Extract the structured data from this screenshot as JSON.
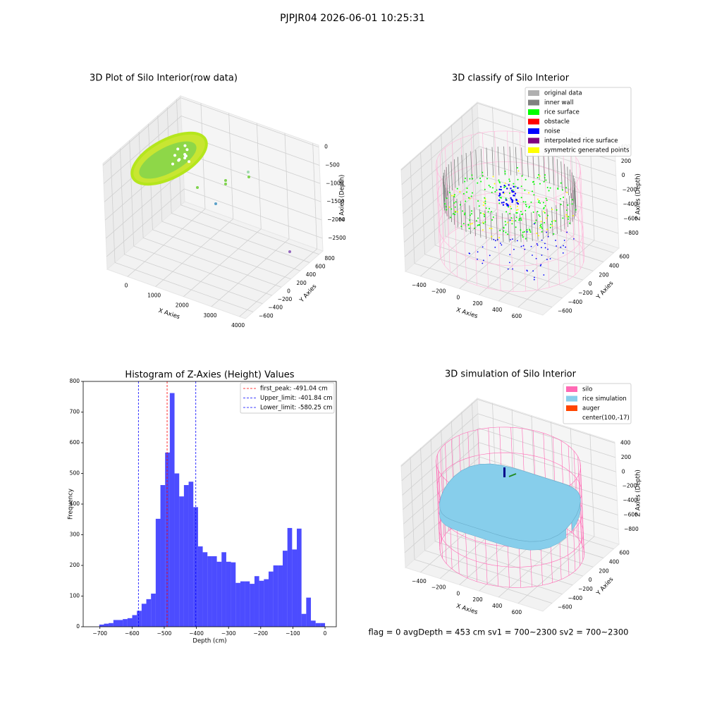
{
  "suptitle": "PJPJR04 2026-06-01 10:25:31",
  "footer": "flag = 0     avgDepth = 453 cm  sv1 = 700~2300  sv2 = 700~2300",
  "chart_data": [
    {
      "type": "scatter3d",
      "title": "3D Plot of Silo Interior(row data)",
      "xlabel": "X Axies",
      "ylabel": "Y Axies",
      "zlabel": "Z Axies (Depth)",
      "xlim": [
        -730,
        4210
      ],
      "ylim": [
        -765,
        882
      ],
      "zlim": [
        -2850,
        50
      ],
      "xticks": [
        0,
        1000,
        2000,
        3000,
        4000
      ],
      "yticks": [
        {
          "value": -600,
          "label": "−600"
        },
        {
          "value": -400,
          "label": "−400"
        },
        {
          "value": -200,
          "label": "−200"
        },
        0,
        200,
        400,
        600,
        800
      ],
      "zticks": [
        0,
        {
          "value": -500,
          "label": "−500"
        },
        {
          "value": -1000,
          "label": "−1000"
        },
        {
          "value": -1500,
          "label": "−1500"
        },
        {
          "value": -2000,
          "label": "−2000"
        },
        {
          "value": -2500,
          "label": "−2500"
        }
      ]
    },
    {
      "type": "scatter3d",
      "title": "3D classify of Silo Interior",
      "xlabel": "X Axies",
      "ylabel": "Y Axies",
      "zlabel": "Z Axies (Depth)",
      "xlim": [
        -555,
        853
      ],
      "ylim": [
        -778,
        703
      ],
      "zlim": [
        -1005,
        413
      ],
      "xticks": [
        {
          "value": -400,
          "label": "−400"
        },
        {
          "value": -200,
          "label": "−200"
        },
        0,
        200,
        400,
        600
      ],
      "yticks": [
        {
          "value": -600,
          "label": "−600"
        },
        {
          "value": -400,
          "label": "−400"
        },
        {
          "value": -200,
          "label": "−200"
        },
        0,
        200,
        400,
        600
      ],
      "zticks": [
        400,
        200,
        0,
        {
          "value": -200,
          "label": "−200"
        },
        {
          "value": -400,
          "label": "−400"
        },
        {
          "value": -600,
          "label": "−600"
        },
        {
          "value": -800,
          "label": "−800"
        }
      ],
      "legend": [
        {
          "name": "original data",
          "color": "#b0b0b0"
        },
        {
          "name": "inner wall",
          "color": "#808080"
        },
        {
          "name": "rice surface",
          "color": "#00ff00"
        },
        {
          "name": "obstacle",
          "color": "#ff0000"
        },
        {
          "name": "noise",
          "color": "#0000ff"
        },
        {
          "name": "interpolated rice surface",
          "color": "#800080"
        },
        {
          "name": "symmetric generated points",
          "color": "#ffff00"
        }
      ]
    },
    {
      "type": "histogram",
      "title": "Histogram of Z-Axies (Height) Values",
      "xlabel": "Depth (cm)",
      "ylabel": "Frequency",
      "color": "#0000ff",
      "xlim": [
        -752,
        35
      ],
      "ylim": [
        0,
        800
      ],
      "xticks": [
        {
          "value": -700,
          "label": "−700"
        },
        {
          "value": -600,
          "label": "−600"
        },
        {
          "value": -500,
          "label": "−500"
        },
        {
          "value": -400,
          "label": "−400"
        },
        {
          "value": -300,
          "label": "−300"
        },
        {
          "value": -200,
          "label": "−200"
        },
        {
          "value": -100,
          "label": "−100"
        },
        0
      ],
      "yticks": [
        0,
        100,
        200,
        300,
        400,
        500,
        600,
        700,
        800
      ],
      "bins": [
        -702,
        -687.375,
        -672.75,
        -658.125,
        -643.5,
        -628.875,
        -614.25,
        -599.625,
        -585,
        -570.375,
        -555.75,
        -541.125,
        -526.5,
        -511.875,
        -497.25,
        -482.625,
        -468,
        -453.375,
        -438.75,
        -424.125,
        -409.5,
        -394.875,
        -380.25,
        -365.625,
        -351,
        -336.375,
        -321.75,
        -307.125,
        -292.5,
        -277.875,
        -263.25,
        -248.625,
        -234,
        -219.375,
        -204.75,
        -190.125,
        -175.5,
        -160.875,
        -146.25,
        -131.625,
        -117,
        -102.375,
        -87.75,
        -73.125,
        -58.5,
        -43.875,
        -29.25,
        -14.625,
        0
      ],
      "counts": [
        7,
        10,
        12,
        22,
        22,
        25,
        28,
        38,
        52,
        75,
        90,
        108,
        352,
        462,
        568,
        762,
        500,
        425,
        462,
        473,
        390,
        262,
        243,
        230,
        230,
        212,
        243,
        212,
        210,
        143,
        148,
        148,
        140,
        165,
        150,
        155,
        180,
        200,
        200,
        248,
        322,
        252,
        320,
        42,
        95,
        20,
        12,
        12
      ],
      "lines": [
        {
          "value": -491.04,
          "label": "first_peak: -491.04 cm",
          "color": "#ff0000"
        },
        {
          "value": -401.84,
          "label": "Upper_limit: -401.84 cm",
          "color": "#0000ff"
        },
        {
          "value": -580.25,
          "label": "Lower_limit: -580.25 cm",
          "color": "#0000ff"
        }
      ]
    },
    {
      "type": "surface3d",
      "title": "3D simulation of Silo Interior",
      "xlabel": "X Axies",
      "ylabel": "Y Axies",
      "zlabel": "Z Axies (Depth)",
      "xlim": [
        -555,
        853
      ],
      "ylim": [
        -778,
        703
      ],
      "zlim": [
        -1006,
        414
      ],
      "xticks": [
        {
          "value": -400,
          "label": "−400"
        },
        {
          "value": -200,
          "label": "−200"
        },
        0,
        200,
        400,
        600
      ],
      "yticks": [
        {
          "value": -600,
          "label": "−600"
        },
        {
          "value": -400,
          "label": "−400"
        },
        {
          "value": -200,
          "label": "−200"
        },
        0,
        200,
        400,
        600
      ],
      "zticks": [
        400,
        200,
        0,
        {
          "value": -200,
          "label": "−200"
        },
        {
          "value": -400,
          "label": "−400"
        },
        {
          "value": -600,
          "label": "−600"
        },
        {
          "value": -800,
          "label": "−800"
        }
      ],
      "legend": [
        {
          "name": "silo",
          "color": "#ff69b4"
        },
        {
          "name": "rice simulation",
          "color": "#87ceeb"
        },
        {
          "name": "auger",
          "color": "#ff4500"
        },
        {
          "name": "center(100,-17)",
          "color": "none"
        }
      ]
    }
  ]
}
